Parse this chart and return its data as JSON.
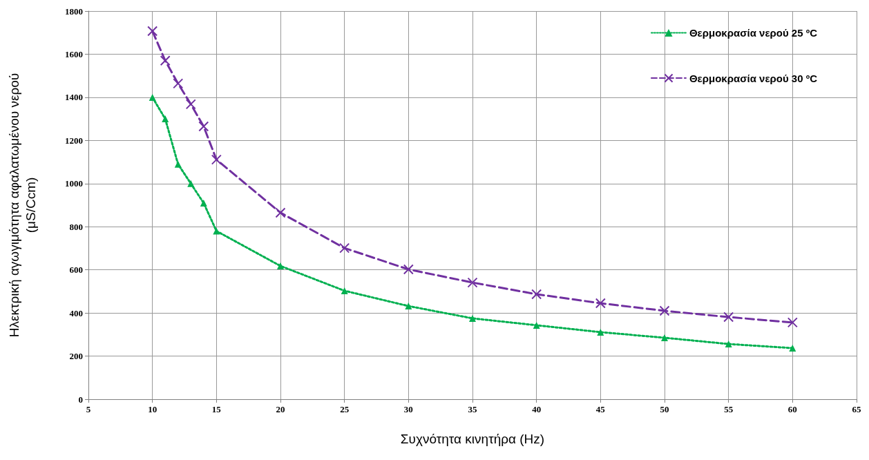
{
  "chart_data": {
    "type": "line",
    "xlabel": "Συχνότητα κινητήρα (Hz)",
    "ylabel": "Ηλεκτρική αγωγιμότητα αφαλατωμένου νερού\n(μS/Ccm)",
    "x": [
      10,
      11,
      12,
      13,
      14,
      15,
      20,
      25,
      30,
      35,
      40,
      45,
      50,
      55,
      60
    ],
    "series": [
      {
        "name": "Θερμοκρασία νερού 25 ºC",
        "color": "#00b050",
        "marker": "triangle",
        "line_style": "dotted",
        "values": [
          1400,
          1300,
          1090,
          1000,
          910,
          780,
          618,
          503,
          432,
          375,
          343,
          311,
          285,
          256,
          237
        ]
      },
      {
        "name": "Θερμοκρασία νερού 30 ºC",
        "color": "#7030a0",
        "marker": "cross",
        "line_style": "dashed",
        "values": [
          1707,
          1570,
          1464,
          1368,
          1265,
          1111,
          865,
          701,
          602,
          541,
          487,
          445,
          410,
          381,
          356
        ]
      }
    ],
    "xlim": [
      5,
      65
    ],
    "xticks": [
      5,
      10,
      15,
      20,
      25,
      30,
      35,
      40,
      45,
      50,
      55,
      60,
      65
    ],
    "ylim": [
      0,
      1800
    ],
    "yticks": [
      0,
      200,
      400,
      600,
      800,
      1000,
      1200,
      1400,
      1600,
      1800
    ],
    "grid": true,
    "legend": "top right"
  }
}
